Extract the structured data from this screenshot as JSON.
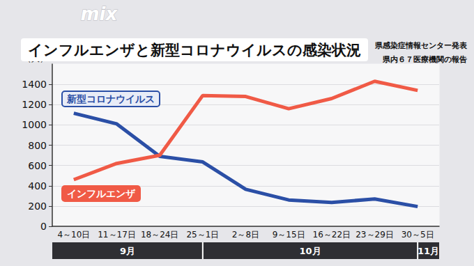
{
  "chart_data": {
    "type": "line",
    "title": "インフルエンザと新型コロナウイルスの感染状況",
    "logo": "mix",
    "notes": [
      "県感染症情報センター発表",
      "県内６７医療機関の報告"
    ],
    "y_label": "（人）",
    "categories": [
      "4～10日",
      "11～17日",
      "18～24日",
      "25～1日",
      "2～8日",
      "9～15日",
      "16～22日",
      "23～29日",
      "30～5日"
    ],
    "months": [
      {
        "label": "9月",
        "until": "25～1日"
      },
      {
        "label": "10月",
        "until": "30～5日"
      },
      {
        "label": "11月"
      }
    ],
    "series": [
      {
        "name": "新型コロナウイルス",
        "color": "#2b4fa6",
        "values": [
          1115,
          1010,
          690,
          635,
          365,
          260,
          235,
          270,
          195
        ]
      },
      {
        "name": "インフルエンザ",
        "color": "#f05a46",
        "values": [
          460,
          620,
          700,
          1290,
          1280,
          1160,
          1260,
          1430,
          1340
        ]
      }
    ],
    "ylim": [
      0,
      1600
    ],
    "yticks": [
      0,
      200,
      400,
      600,
      800,
      1000,
      1200,
      1400
    ],
    "grid": true,
    "legend": "none"
  }
}
